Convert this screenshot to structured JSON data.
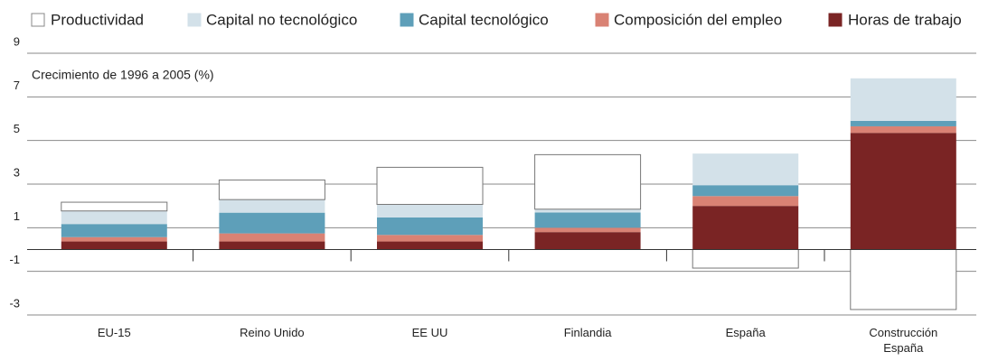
{
  "chart_data": {
    "type": "stacked_bar",
    "subtitle": "Crecimiento de 1996 a 2005 (%)",
    "categories": [
      "EU-15",
      "Reino Unido",
      "EE UU",
      "Finlandia",
      "España",
      "Construcción España"
    ],
    "series": [
      {
        "name": "Horas de trabajo",
        "color": "#7a2424",
        "values": [
          0.37,
          0.37,
          0.37,
          0.8,
          2.0,
          5.35
        ]
      },
      {
        "name": "Composición del empleo",
        "color": "#d98274",
        "values": [
          0.2,
          0.37,
          0.3,
          0.2,
          0.45,
          0.3
        ]
      },
      {
        "name": "Capital tecnológico",
        "color": "#5e9fb9",
        "values": [
          0.6,
          0.95,
          0.8,
          0.7,
          0.5,
          0.25
        ]
      },
      {
        "name": "Capital no tecnológico",
        "color": "#d3e1e9",
        "values": [
          0.6,
          0.6,
          0.6,
          0.15,
          1.45,
          1.95
        ]
      },
      {
        "name": "Productividad",
        "color": "#ffffff",
        "values": [
          0.4,
          0.9,
          1.7,
          2.5,
          -0.85,
          -2.75
        ]
      }
    ],
    "ylim": [
      -3,
      9
    ],
    "yticks": [
      -3,
      -1,
      1,
      3,
      5,
      7,
      9
    ],
    "grid": true
  }
}
